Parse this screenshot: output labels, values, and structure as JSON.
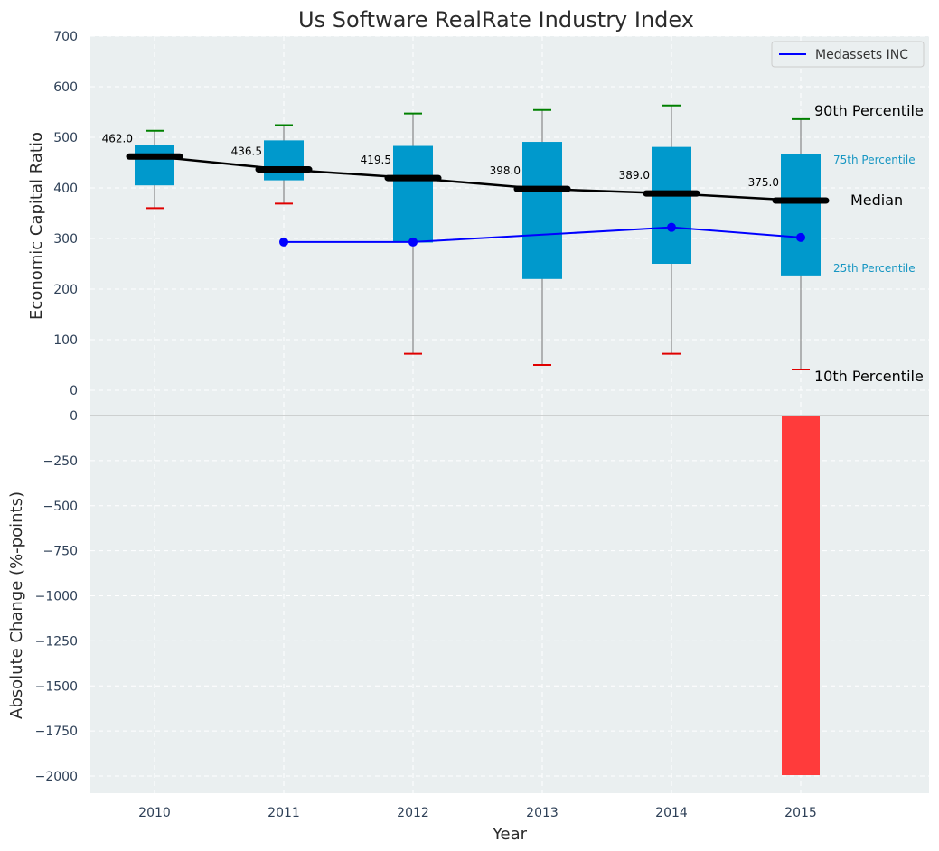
{
  "chart_data": [
    {
      "type": "box",
      "title": "Us Software RealRate Industry Index",
      "xlabel": "",
      "ylabel": "Economic Capital Ratio",
      "ylim": [
        0,
        700
      ],
      "yticks": [
        0,
        100,
        200,
        300,
        400,
        500,
        600,
        700
      ],
      "categories": [
        "2010",
        "2011",
        "2012",
        "2013",
        "2014",
        "2015"
      ],
      "p10": [
        360,
        369,
        72,
        50,
        72,
        41
      ],
      "p25": [
        405,
        415,
        292,
        220,
        250,
        227
      ],
      "median": [
        462.0,
        436.5,
        419.5,
        398.0,
        389.0,
        375.0
      ],
      "median_labels": [
        "462.0",
        "436.5",
        "419.5",
        "398.0",
        "389.0",
        "375.0"
      ],
      "p75": [
        485,
        494,
        483,
        491,
        481,
        467
      ],
      "p90": [
        513,
        524,
        547,
        554,
        563,
        536
      ],
      "series": [
        {
          "name": "Medassets INC",
          "x": [
            "2011",
            "2012",
            "2014",
            "2015"
          ],
          "values": [
            293,
            293,
            322,
            302
          ],
          "color": "#0000ff"
        }
      ],
      "annotations": {
        "p90": "90th Percentile",
        "p75": "75th Percentile",
        "median": "Median",
        "p25": "25th Percentile",
        "p10": "10th Percentile"
      },
      "grid": true,
      "legend_position": "top-right"
    },
    {
      "type": "bar",
      "xlabel": "Year",
      "ylabel": "Absolute Change (%-points)",
      "ylim": [
        -2090,
        0
      ],
      "yticks": [
        0,
        -250,
        -500,
        -750,
        -1000,
        -1250,
        -1500,
        -1750,
        -2000
      ],
      "ytick_labels": [
        "0",
        "−250",
        "−500",
        "−750",
        "−1000",
        "−1250",
        "−1500",
        "−1750",
        "−2000"
      ],
      "categories": [
        "2010",
        "2011",
        "2012",
        "2013",
        "2014",
        "2015"
      ],
      "values": [
        0,
        0,
        0,
        0,
        0,
        -1995
      ],
      "grid": true
    }
  ],
  "colors": {
    "background": "#eaeff0",
    "box_fill": "#0099cc",
    "median": "#000000",
    "whisker_top": "#008000",
    "whisker_bottom": "#e00000",
    "company_line": "#0000ff",
    "change_bar": "#ff3b3b",
    "grid": "#ffffff"
  }
}
